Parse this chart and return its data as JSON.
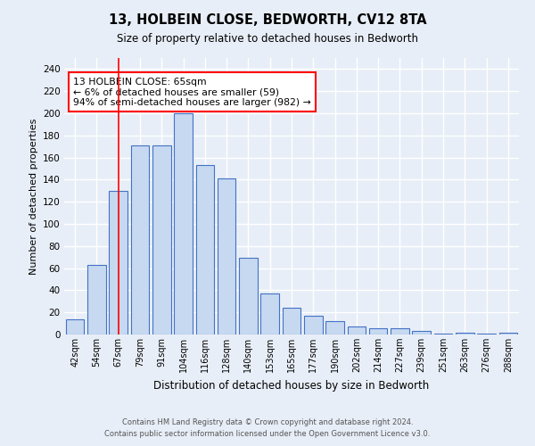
{
  "title1": "13, HOLBEIN CLOSE, BEDWORTH, CV12 8TA",
  "title2": "Size of property relative to detached houses in Bedworth",
  "xlabel": "Distribution of detached houses by size in Bedworth",
  "ylabel": "Number of detached properties",
  "categories": [
    "42sqm",
    "54sqm",
    "67sqm",
    "79sqm",
    "91sqm",
    "104sqm",
    "116sqm",
    "128sqm",
    "140sqm",
    "153sqm",
    "165sqm",
    "177sqm",
    "190sqm",
    "202sqm",
    "214sqm",
    "227sqm",
    "239sqm",
    "251sqm",
    "263sqm",
    "276sqm",
    "288sqm"
  ],
  "values": [
    14,
    63,
    130,
    171,
    171,
    200,
    153,
    141,
    69,
    37,
    24,
    17,
    12,
    7,
    6,
    6,
    3,
    1,
    2,
    1,
    2
  ],
  "bar_color": "#c6d9f1",
  "bar_edge_color": "#4472c4",
  "ylim": [
    0,
    250
  ],
  "yticks": [
    0,
    20,
    40,
    60,
    80,
    100,
    120,
    140,
    160,
    180,
    200,
    220,
    240
  ],
  "red_line_index": 2,
  "annotation_text": "13 HOLBEIN CLOSE: 65sqm\n← 6% of detached houses are smaller (59)\n94% of semi-detached houses are larger (982) →",
  "annotation_box_color": "white",
  "annotation_box_edge_color": "red",
  "red_line_color": "red",
  "footer1": "Contains HM Land Registry data © Crown copyright and database right 2024.",
  "footer2": "Contains public sector information licensed under the Open Government Licence v3.0.",
  "background_color": "#e8eef7",
  "grid_color": "white"
}
